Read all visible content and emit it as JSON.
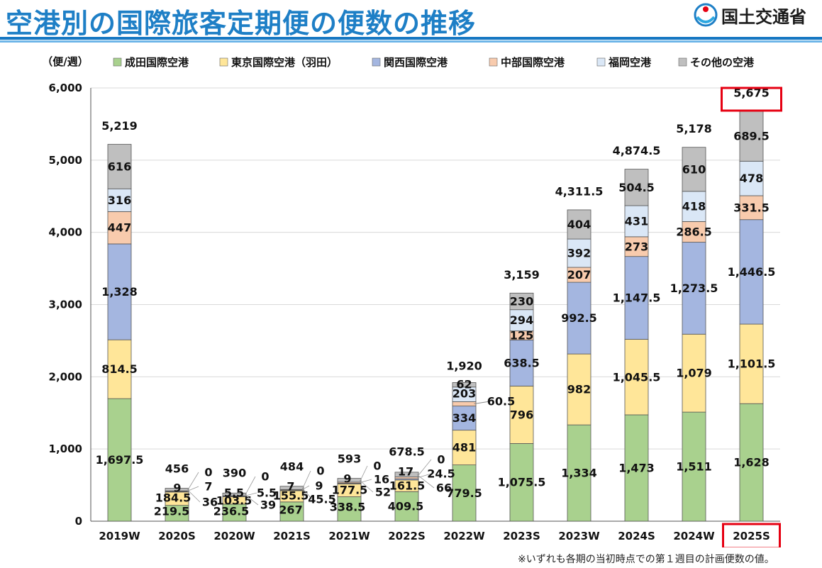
{
  "page": {
    "title": "空港別の国際旅客定期便の便数の推移",
    "logo_text": "国土交通省",
    "footnote": "※いずれも各期の当初時点での第１週目の計画便数の値。"
  },
  "chart_data": {
    "type": "bar",
    "stacked": true,
    "ylabel": "（便/週）",
    "ylim": [
      0,
      6000
    ],
    "yticks": [
      "0",
      "1,000",
      "2,000",
      "3,000",
      "4,000",
      "5,000",
      "6,000"
    ],
    "categories": [
      "2019W",
      "2020S",
      "2020W",
      "2021S",
      "2021W",
      "2022S",
      "2022W",
      "2023S",
      "2023W",
      "2024S",
      "2024W",
      "2025S"
    ],
    "highlight_category": "2025S",
    "legend_position": "top",
    "series": [
      {
        "name": "成田国際空港",
        "color": "#a9d18e",
        "values": [
          1697.5,
          219.5,
          236.5,
          267,
          338.5,
          409.5,
          779.5,
          1075.5,
          1334,
          1473,
          1511,
          1628
        ],
        "labels": [
          "1,697.5",
          "219.5",
          "236.5",
          "267",
          "338.5",
          "409.5",
          "779.5",
          "1,075.5",
          "1,334",
          "1,473",
          "1,511",
          "1,628"
        ]
      },
      {
        "name": "東京国際空港（羽田）",
        "color": "#ffe699",
        "values": [
          814.5,
          184.5,
          103.5,
          155.5,
          177.5,
          161.5,
          481,
          796,
          982,
          1045.5,
          1079,
          1101.5
        ],
        "labels": [
          "814.5",
          "184.5",
          "103.5",
          "155.5",
          "177.5",
          "161.5",
          "481",
          "796",
          "982",
          "1,045.5",
          "1,079",
          "1,101.5"
        ]
      },
      {
        "name": "関西国際空港",
        "color": "#a4b6e0",
        "values": [
          1328,
          9,
          5.5,
          7,
          9,
          17,
          334,
          638.5,
          992.5,
          1147.5,
          1273.5,
          1446.5
        ],
        "labels": [
          "1,328",
          "9",
          "5.5",
          "7",
          "9",
          "17",
          "334",
          "638.5",
          "992.5",
          "1,147.5",
          "1,273.5",
          "1,446.5"
        ]
      },
      {
        "name": "中部国際空港",
        "color": "#f8cbad",
        "values": [
          447,
          7,
          5.5,
          9,
          16,
          24.5,
          60.5,
          125,
          207,
          273,
          286.5,
          331.5
        ],
        "labels": [
          "447",
          "7",
          "5.5",
          "9",
          "16",
          "24.5",
          "60.5",
          "125",
          "207",
          "273",
          "286.5",
          "331.5"
        ]
      },
      {
        "name": "福岡空港",
        "color": "#dae7f6",
        "values": [
          316,
          0,
          0,
          0,
          0,
          0,
          203,
          294,
          392,
          431,
          418,
          478
        ],
        "labels": [
          "316",
          "0",
          "0",
          "0",
          "0",
          "0",
          "203",
          "294",
          "392",
          "431",
          "418",
          "478"
        ]
      },
      {
        "name": "その他の空港",
        "color": "#bfbfbf",
        "values": [
          616,
          36,
          39,
          45.5,
          52,
          66,
          62,
          230,
          404,
          504.5,
          610,
          689.5
        ],
        "labels": [
          "616",
          "36",
          "39",
          "45.5",
          "52",
          "66",
          "62",
          "230",
          "404",
          "504.5",
          "610",
          "689.5"
        ]
      }
    ],
    "totals": [
      5219,
      456,
      390,
      484,
      593,
      678.5,
      1920,
      3159,
      4311.5,
      4874.5,
      5178,
      5675
    ],
    "total_labels": [
      "5,219",
      "456",
      "390",
      "484",
      "593",
      "678.5",
      "1,920",
      "3,159",
      "4,311.5",
      "4,874.5",
      "5,178",
      "5,675"
    ]
  }
}
